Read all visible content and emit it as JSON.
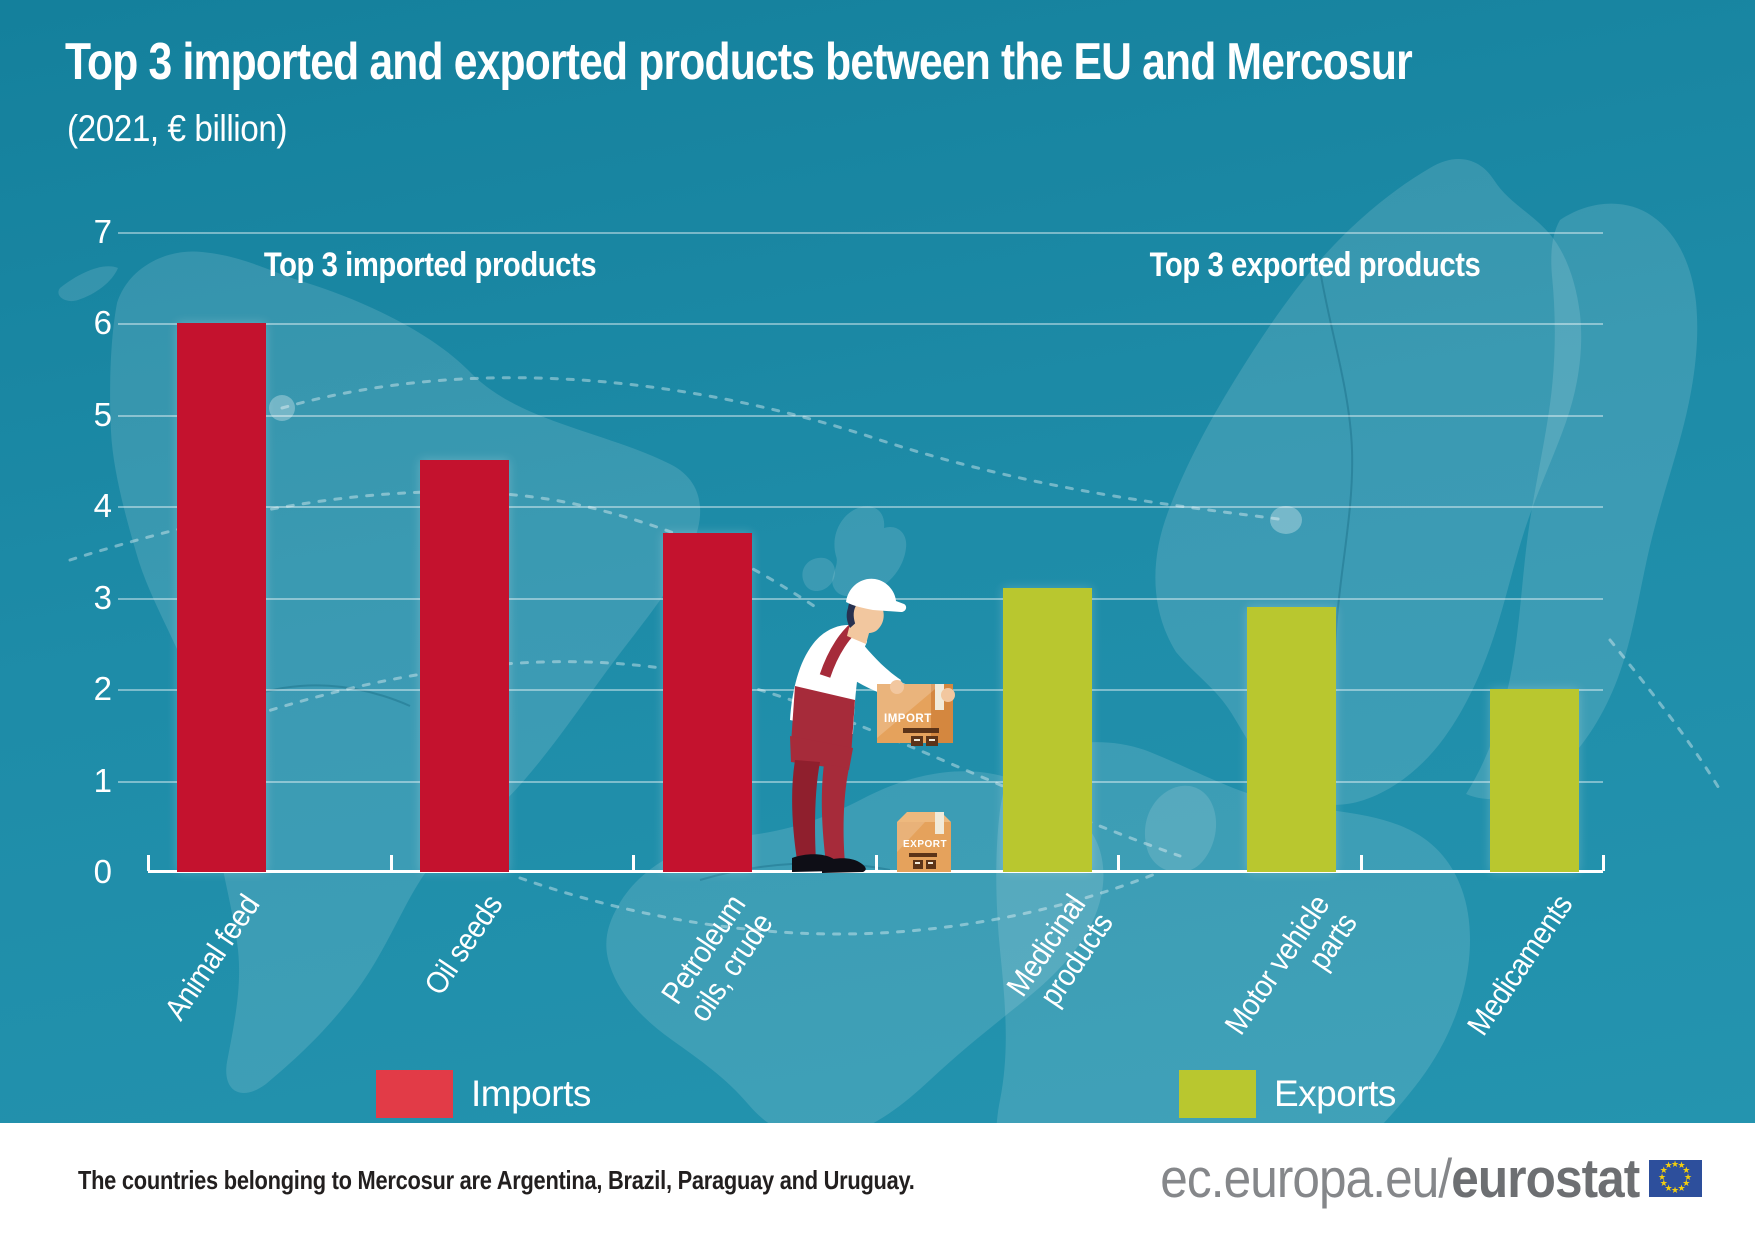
{
  "title": "Top 3 imported and exported products between the EU and Mercosur",
  "subtitle": "(2021, € billion)",
  "group_headings": {
    "imports": "Top 3 imported products",
    "exports": "Top 3 exported products"
  },
  "legend": [
    {
      "label": "Imports",
      "color": "#e23b47"
    },
    {
      "label": "Exports",
      "color": "#b9c72f"
    }
  ],
  "illustration": {
    "import_box_label": "IMPORT",
    "export_box_label": "EXPORT"
  },
  "footer": {
    "note": "The countries belonging to Mercosur are Argentina, Brazil, Paraguay and Uruguay.",
    "logo_prefix": "ec.europa.eu/",
    "logo_bold": "eurostat"
  },
  "colors": {
    "background_teal": "#1e8ca8",
    "import_bar": "#c4122e",
    "export_bar": "#b9c72f",
    "axis_white": "#ffffff",
    "footer_background": "#ffffff",
    "footer_text": "#221f1f",
    "logo_gray": "#85878a",
    "eu_flag_blue": "#2d4f9c",
    "eu_flag_stars": "#f3ce0e"
  },
  "chart_data": {
    "type": "bar",
    "title": "Top 3 imported and exported products between the EU and Mercosur",
    "subtitle": "(2021, € billion)",
    "xlabel": "",
    "ylabel": "",
    "ylim": [
      0,
      7
    ],
    "yticks": [
      0,
      1,
      2,
      3,
      4,
      5,
      6,
      7
    ],
    "grid": true,
    "legend_position": "bottom",
    "categories": [
      "Animal feed",
      "Oil seeds",
      "Petroleum oils, crude",
      "Medicinal products",
      "Motor vehicle parts",
      "Medicaments"
    ],
    "category_label_lines": [
      [
        "Animal feed"
      ],
      [
        "Oil seeds"
      ],
      [
        "Petroleum",
        "oils, crude"
      ],
      [
        "Medicinal",
        "products"
      ],
      [
        "Motor vehicle",
        "parts"
      ],
      [
        "Medicaments"
      ]
    ],
    "series": [
      {
        "name": "Imports",
        "color": "#c4122e",
        "values": [
          6.0,
          4.5,
          3.7,
          null,
          null,
          null
        ]
      },
      {
        "name": "Exports",
        "color": "#b9c72f",
        "values": [
          null,
          null,
          null,
          3.1,
          2.9,
          2.0
        ]
      }
    ]
  }
}
